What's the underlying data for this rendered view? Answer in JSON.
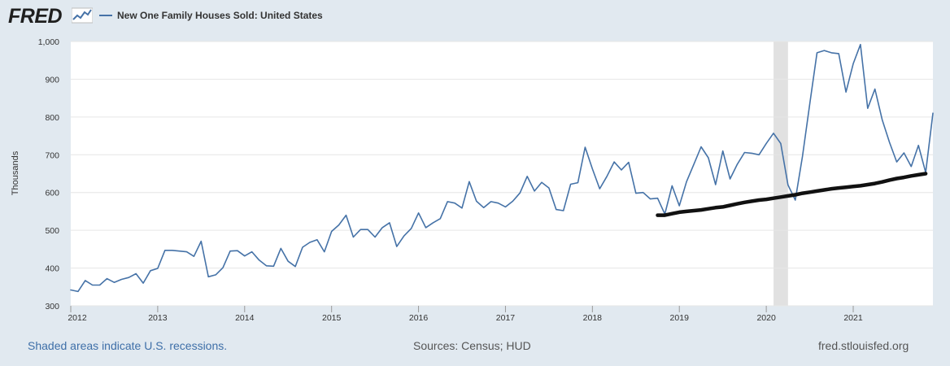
{
  "header": {
    "logo_text": "FRED",
    "legend_label": "New One Family Houses Sold: United States"
  },
  "colors": {
    "series_line": "#4572a7",
    "trend_line": "#111111",
    "recession_shade": "#e1e1e1",
    "background": "#e1e9f0"
  },
  "footer": {
    "recession_note": "Shaded areas indicate U.S. recessions.",
    "sources": "Sources: Census; HUD",
    "site": "fred.stlouisfed.org"
  },
  "chart_data": {
    "type": "line",
    "title": "",
    "xlabel": "",
    "ylabel": "Thousands",
    "ylim": [
      300,
      1000
    ],
    "y_ticks": [
      "300",
      "400",
      "500",
      "600",
      "700",
      "800",
      "900",
      "1,000"
    ],
    "x_ticks": [
      "2012",
      "2013",
      "2014",
      "2015",
      "2016",
      "2017",
      "2018",
      "2019",
      "2020",
      "2021"
    ],
    "grid": true,
    "legend_position": "top-left",
    "recessions": [
      {
        "start": "2020-02",
        "end": "2020-04"
      }
    ],
    "series": [
      {
        "name": "New One Family Houses Sold: United States",
        "start": "2012-01",
        "frequency": "monthly",
        "values": [
          342,
          338,
          367,
          355,
          355,
          372,
          362,
          370,
          375,
          385,
          360,
          393,
          399,
          447,
          447,
          445,
          443,
          431,
          471,
          377,
          382,
          401,
          445,
          446,
          432,
          443,
          421,
          406,
          405,
          452,
          418,
          404,
          455,
          468,
          475,
          443,
          497,
          514,
          540,
          482,
          502,
          502,
          482,
          507,
          520,
          457,
          485,
          505,
          546,
          507,
          520,
          531,
          576,
          572,
          559,
          629,
          577,
          560,
          576,
          572,
          562,
          577,
          599,
          643,
          604,
          627,
          612,
          555,
          552,
          622,
          626,
          720,
          663,
          610,
          643,
          681,
          660,
          680,
          598,
          600,
          583,
          585,
          543,
          618,
          565,
          629,
          675,
          721,
          692,
          621,
          710,
          636,
          675,
          706,
          704,
          700,
          730,
          757,
          730,
          620,
          580,
          697,
          835,
          970,
          976,
          970,
          968,
          866,
          941,
          992,
          823,
          874,
          793,
          733,
          681,
          705,
          669,
          725,
          653,
          810
        ]
      },
      {
        "name": "",
        "start": "2018-10",
        "frequency": "monthly",
        "values": [
          540,
          540,
          544,
          548,
          550,
          552,
          554,
          557,
          560,
          562,
          566,
          570,
          574,
          577,
          580,
          582,
          585,
          588,
          591,
          594,
          598,
          601,
          604,
          607,
          610,
          612,
          614,
          616,
          618,
          621,
          624,
          628,
          633,
          637,
          640,
          644,
          647,
          650
        ]
      }
    ]
  }
}
